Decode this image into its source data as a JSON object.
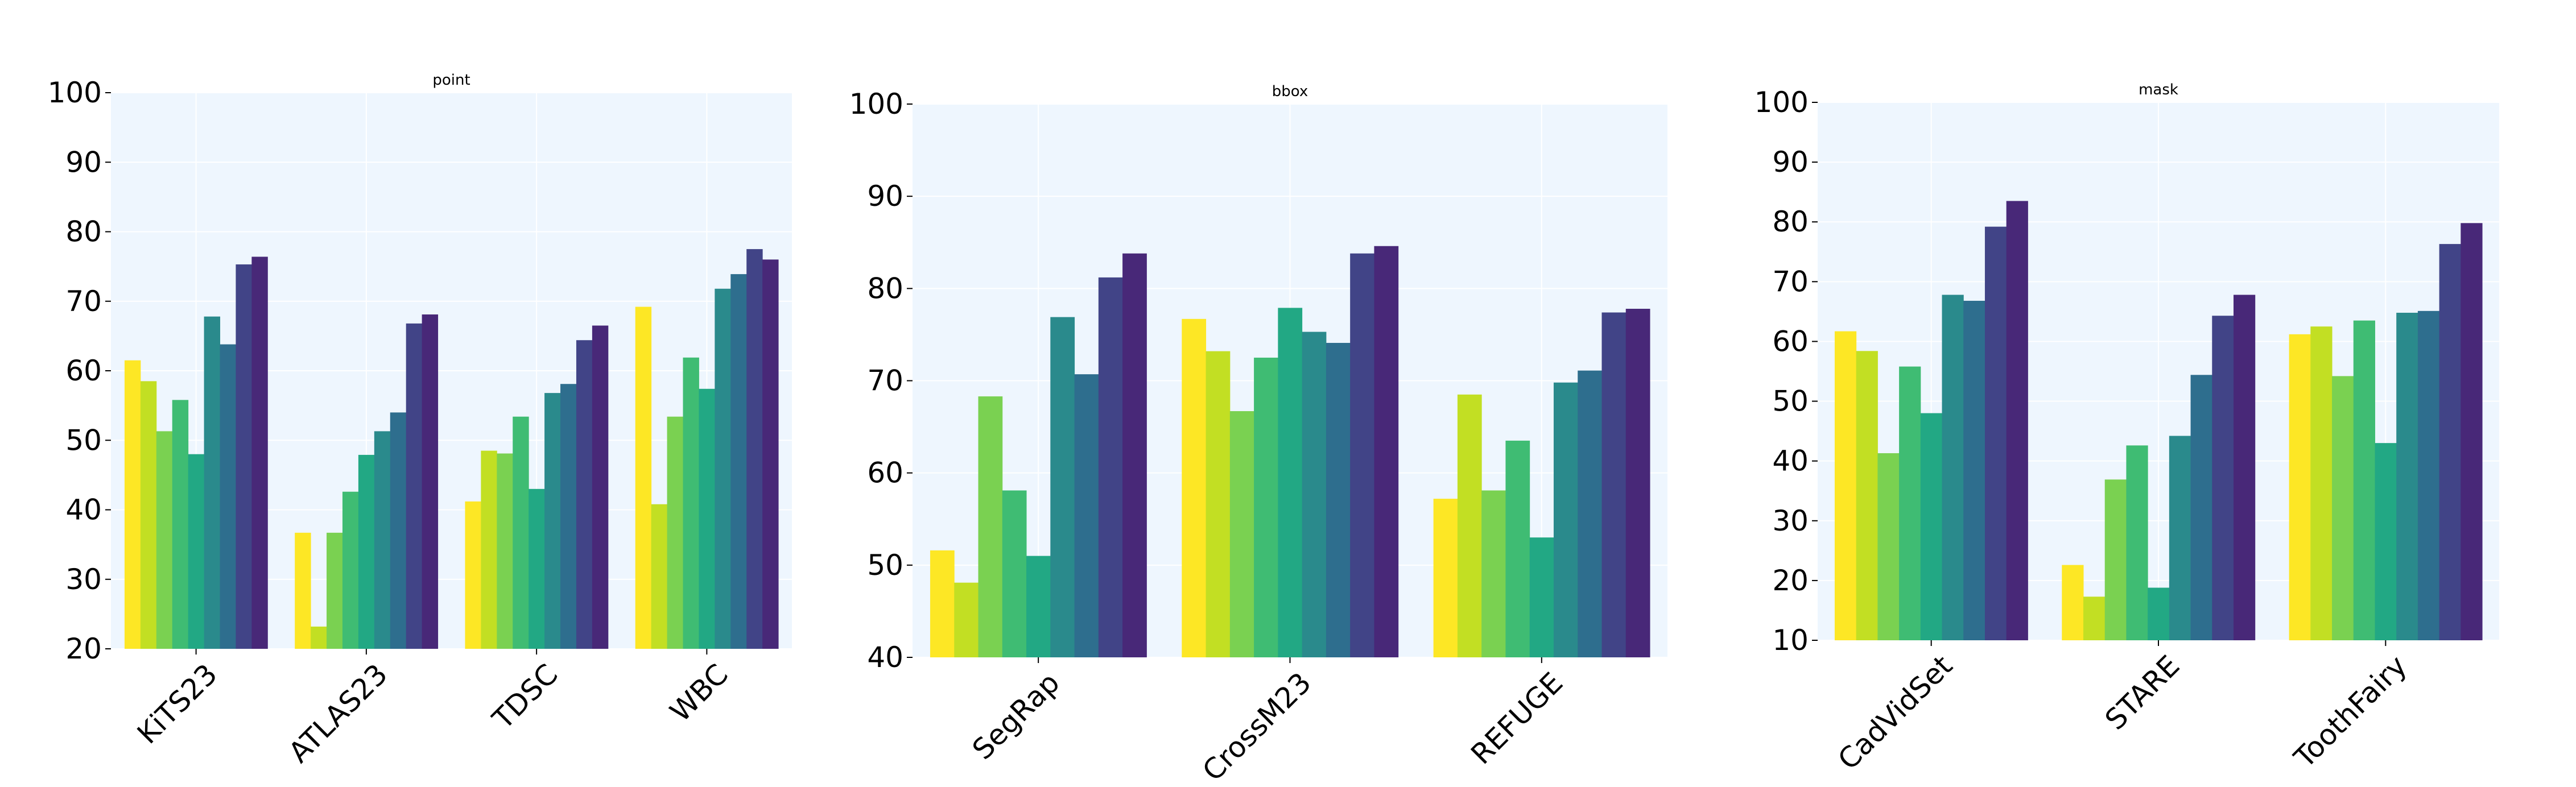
{
  "chart_data": [
    {
      "type": "bar",
      "title": "point",
      "categories": [
        "KiTS23",
        "ATLAS23",
        "TDSC",
        "WBC"
      ],
      "ylim": [
        20,
        100
      ],
      "yticks": [
        20,
        30,
        40,
        50,
        60,
        70,
        80,
        90,
        100
      ],
      "grid": true,
      "series": [
        {
          "values": [
            61.5,
            36.7,
            41.2,
            69.2
          ]
        },
        {
          "values": [
            58.5,
            23.2,
            48.5,
            40.8
          ]
        },
        {
          "values": [
            51.3,
            36.7,
            48.1,
            53.4
          ]
        },
        {
          "values": [
            55.8,
            42.6,
            53.4,
            61.9
          ]
        },
        {
          "values": [
            48.0,
            47.9,
            43.0,
            57.4
          ]
        },
        {
          "values": [
            67.8,
            51.3,
            56.8,
            71.8
          ]
        },
        {
          "values": [
            63.8,
            54.0,
            58.1,
            73.9
          ]
        },
        {
          "values": [
            75.3,
            66.8,
            64.4,
            77.5
          ]
        },
        {
          "values": [
            76.4,
            68.1,
            66.5,
            76.0
          ]
        }
      ]
    },
    {
      "type": "bar",
      "title": "bbox",
      "categories": [
        "SegRap",
        "CrossM23",
        "REFUGE"
      ],
      "ylim": [
        40,
        100
      ],
      "yticks": [
        40,
        50,
        60,
        70,
        80,
        90,
        100
      ],
      "grid": true,
      "series": [
        {
          "values": [
            51.6,
            76.7,
            57.2
          ]
        },
        {
          "values": [
            48.1,
            73.2,
            68.5
          ]
        },
        {
          "values": [
            68.3,
            66.7,
            58.1
          ]
        },
        {
          "values": [
            58.1,
            72.5,
            63.5
          ]
        },
        {
          "values": [
            51.0,
            77.9,
            53.0
          ]
        },
        {
          "values": [
            76.9,
            75.3,
            69.8
          ]
        },
        {
          "values": [
            70.7,
            74.1,
            71.1
          ]
        },
        {
          "values": [
            81.2,
            83.8,
            77.4
          ]
        },
        {
          "values": [
            83.8,
            84.6,
            77.8
          ]
        }
      ]
    },
    {
      "type": "bar",
      "title": "mask",
      "categories": [
        "CadVidSet",
        "STARE",
        "ToothFairy"
      ],
      "ylim": [
        10,
        100
      ],
      "yticks": [
        10,
        20,
        30,
        40,
        50,
        60,
        70,
        80,
        90,
        100
      ],
      "grid": true,
      "series": [
        {
          "values": [
            61.7,
            22.6,
            61.2
          ]
        },
        {
          "values": [
            58.4,
            17.3,
            62.5
          ]
        },
        {
          "values": [
            41.3,
            36.9,
            54.2
          ]
        },
        {
          "values": [
            55.8,
            42.6,
            63.5
          ]
        },
        {
          "values": [
            48.0,
            18.8,
            43.0
          ]
        },
        {
          "values": [
            67.8,
            44.2,
            64.8
          ]
        },
        {
          "values": [
            66.8,
            54.4,
            65.1
          ]
        },
        {
          "values": [
            79.2,
            64.3,
            76.3
          ]
        },
        {
          "values": [
            83.5,
            67.8,
            79.8
          ]
        }
      ]
    }
  ],
  "colors": {
    "series": [
      "#fde725",
      "#c2df23",
      "#7ad151",
      "#3fbc73",
      "#22a884",
      "#2a8a8c",
      "#2e6e8e",
      "#414487",
      "#482878"
    ],
    "plot_background": "#eef6fe",
    "grid": "#ffffff"
  }
}
